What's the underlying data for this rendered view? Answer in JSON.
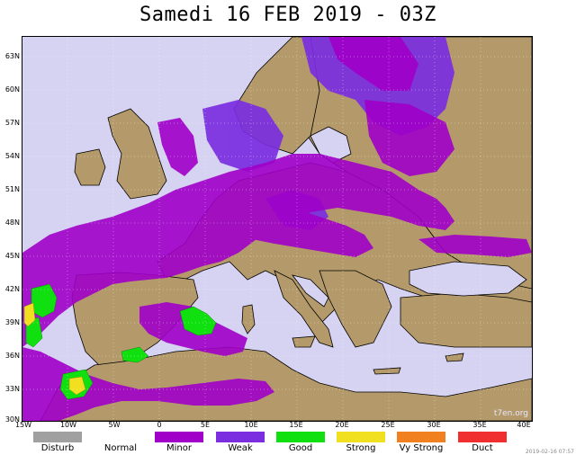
{
  "title": "Samedi 16 FEB 2019 - 03Z",
  "watermark": "t7en.org",
  "footer_text": "2019-02-16 07:57",
  "lat_labels": [
    "63N",
    "60N",
    "57N",
    "54N",
    "51N",
    "48N",
    "45N",
    "42N",
    "39N",
    "36N",
    "33N",
    "30N"
  ],
  "lon_labels": [
    "15W",
    "10W",
    "5W",
    "0",
    "5E",
    "10E",
    "15E",
    "20E",
    "25E",
    "30E",
    "35E",
    "40E"
  ],
  "colors": {
    "sea": "#d6d2f2",
    "land": "#b49a6a",
    "minor": "#a000c8",
    "weak": "#7a2ee0",
    "good": "#10e010",
    "strong": "#f0e020",
    "coast": "#000000"
  },
  "legend": [
    {
      "label": "Disturb",
      "color": "#a0a0a0"
    },
    {
      "label": "Normal",
      "color": "#ffffff"
    },
    {
      "label": "Minor",
      "color": "#a000c8"
    },
    {
      "label": "Weak",
      "color": "#7a2ee0"
    },
    {
      "label": "Good",
      "color": "#10e010"
    },
    {
      "label": "Strong",
      "color": "#f0e020"
    },
    {
      "label": "Vy Strong",
      "color": "#f08020"
    },
    {
      "label": "Duct",
      "color": "#f03030"
    }
  ]
}
